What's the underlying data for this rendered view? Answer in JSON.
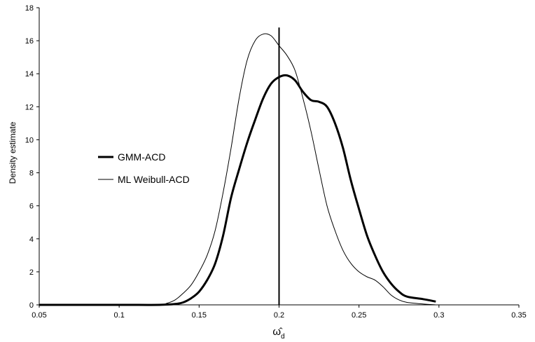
{
  "chart_data": {
    "type": "line",
    "title": "",
    "xlabel": "ω̂",
    "xlabel_subscript": "d",
    "ylabel": "Density estimate",
    "xlim": [
      0.05,
      0.35
    ],
    "ylim": [
      0,
      18
    ],
    "xticks": [
      0.05,
      0.1,
      0.15,
      0.2,
      0.25,
      0.3,
      0.35
    ],
    "xtick_labels": [
      "0.05",
      "0.1",
      "0.15",
      "0.2",
      "0.25",
      "0.3",
      "0.35"
    ],
    "yticks": [
      0,
      2,
      4,
      6,
      8,
      10,
      12,
      14,
      16,
      18
    ],
    "ytick_labels": [
      "0",
      "2",
      "4",
      "6",
      "8",
      "10",
      "12",
      "14",
      "16",
      "18"
    ],
    "grid": false,
    "legend_position": "center-left",
    "vline": 0.2,
    "series": [
      {
        "name": "GMM-ACD",
        "line_style": "thick",
        "x": [
          0.05,
          0.1,
          0.125,
          0.135,
          0.14,
          0.145,
          0.15,
          0.155,
          0.16,
          0.165,
          0.17,
          0.175,
          0.18,
          0.185,
          0.19,
          0.195,
          0.2,
          0.205,
          0.21,
          0.215,
          0.22,
          0.225,
          0.23,
          0.235,
          0.24,
          0.245,
          0.25,
          0.255,
          0.26,
          0.265,
          0.27,
          0.275,
          0.28,
          0.29,
          0.298
        ],
        "y": [
          0,
          0,
          0,
          0.05,
          0.15,
          0.4,
          0.8,
          1.5,
          2.5,
          4.2,
          6.5,
          8.2,
          9.8,
          11.2,
          12.5,
          13.4,
          13.8,
          13.9,
          13.6,
          12.9,
          12.4,
          12.3,
          12.0,
          11.0,
          9.5,
          7.5,
          5.8,
          4.2,
          3.0,
          2.0,
          1.3,
          0.8,
          0.5,
          0.35,
          0.2
        ]
      },
      {
        "name": "ML Weibull-ACD",
        "line_style": "thin",
        "x": [
          0.05,
          0.1,
          0.125,
          0.13,
          0.135,
          0.14,
          0.145,
          0.15,
          0.155,
          0.16,
          0.165,
          0.17,
          0.175,
          0.18,
          0.185,
          0.19,
          0.195,
          0.2,
          0.205,
          0.21,
          0.215,
          0.22,
          0.225,
          0.23,
          0.235,
          0.24,
          0.245,
          0.25,
          0.255,
          0.26,
          0.265,
          0.27,
          0.275,
          0.28,
          0.29,
          0.298
        ],
        "y": [
          0,
          0,
          0.02,
          0.1,
          0.3,
          0.7,
          1.2,
          2.0,
          3.0,
          4.5,
          6.8,
          9.5,
          12.5,
          14.8,
          16.0,
          16.4,
          16.3,
          15.7,
          15.1,
          14.2,
          12.5,
          10.5,
          8.2,
          6.0,
          4.5,
          3.3,
          2.5,
          2.0,
          1.7,
          1.5,
          1.1,
          0.6,
          0.3,
          0.15,
          0.05,
          0.0
        ]
      }
    ]
  }
}
